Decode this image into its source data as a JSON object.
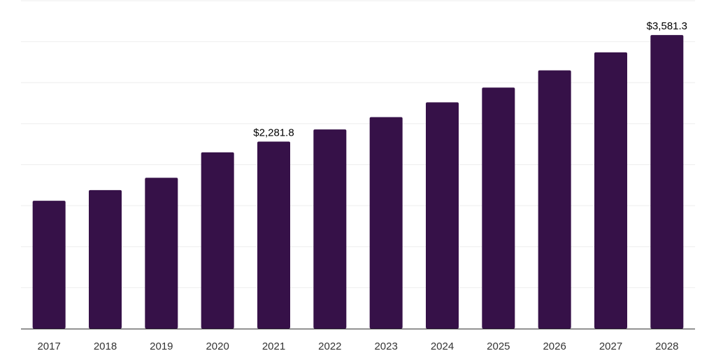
{
  "chart_data": {
    "type": "bar",
    "title": "",
    "xlabel": "",
    "ylabel": "",
    "categories": [
      "2017",
      "2018",
      "2019",
      "2020",
      "2021",
      "2022",
      "2023",
      "2024",
      "2025",
      "2026",
      "2027",
      "2028"
    ],
    "values": [
      1560,
      1690,
      1840,
      2150,
      2281.8,
      2430,
      2580,
      2760,
      2940,
      3150,
      3370,
      3581.3
    ],
    "value_labels": [
      "",
      "",
      "",
      "",
      "$2,281.8",
      "",
      "",
      "",
      "",
      "",
      "",
      "$3,581.3"
    ],
    "ylim": [
      0,
      4000
    ],
    "grid": true,
    "bar_color": "#361148",
    "grid_color": "#eeeeee",
    "axis_color": "#333333"
  }
}
